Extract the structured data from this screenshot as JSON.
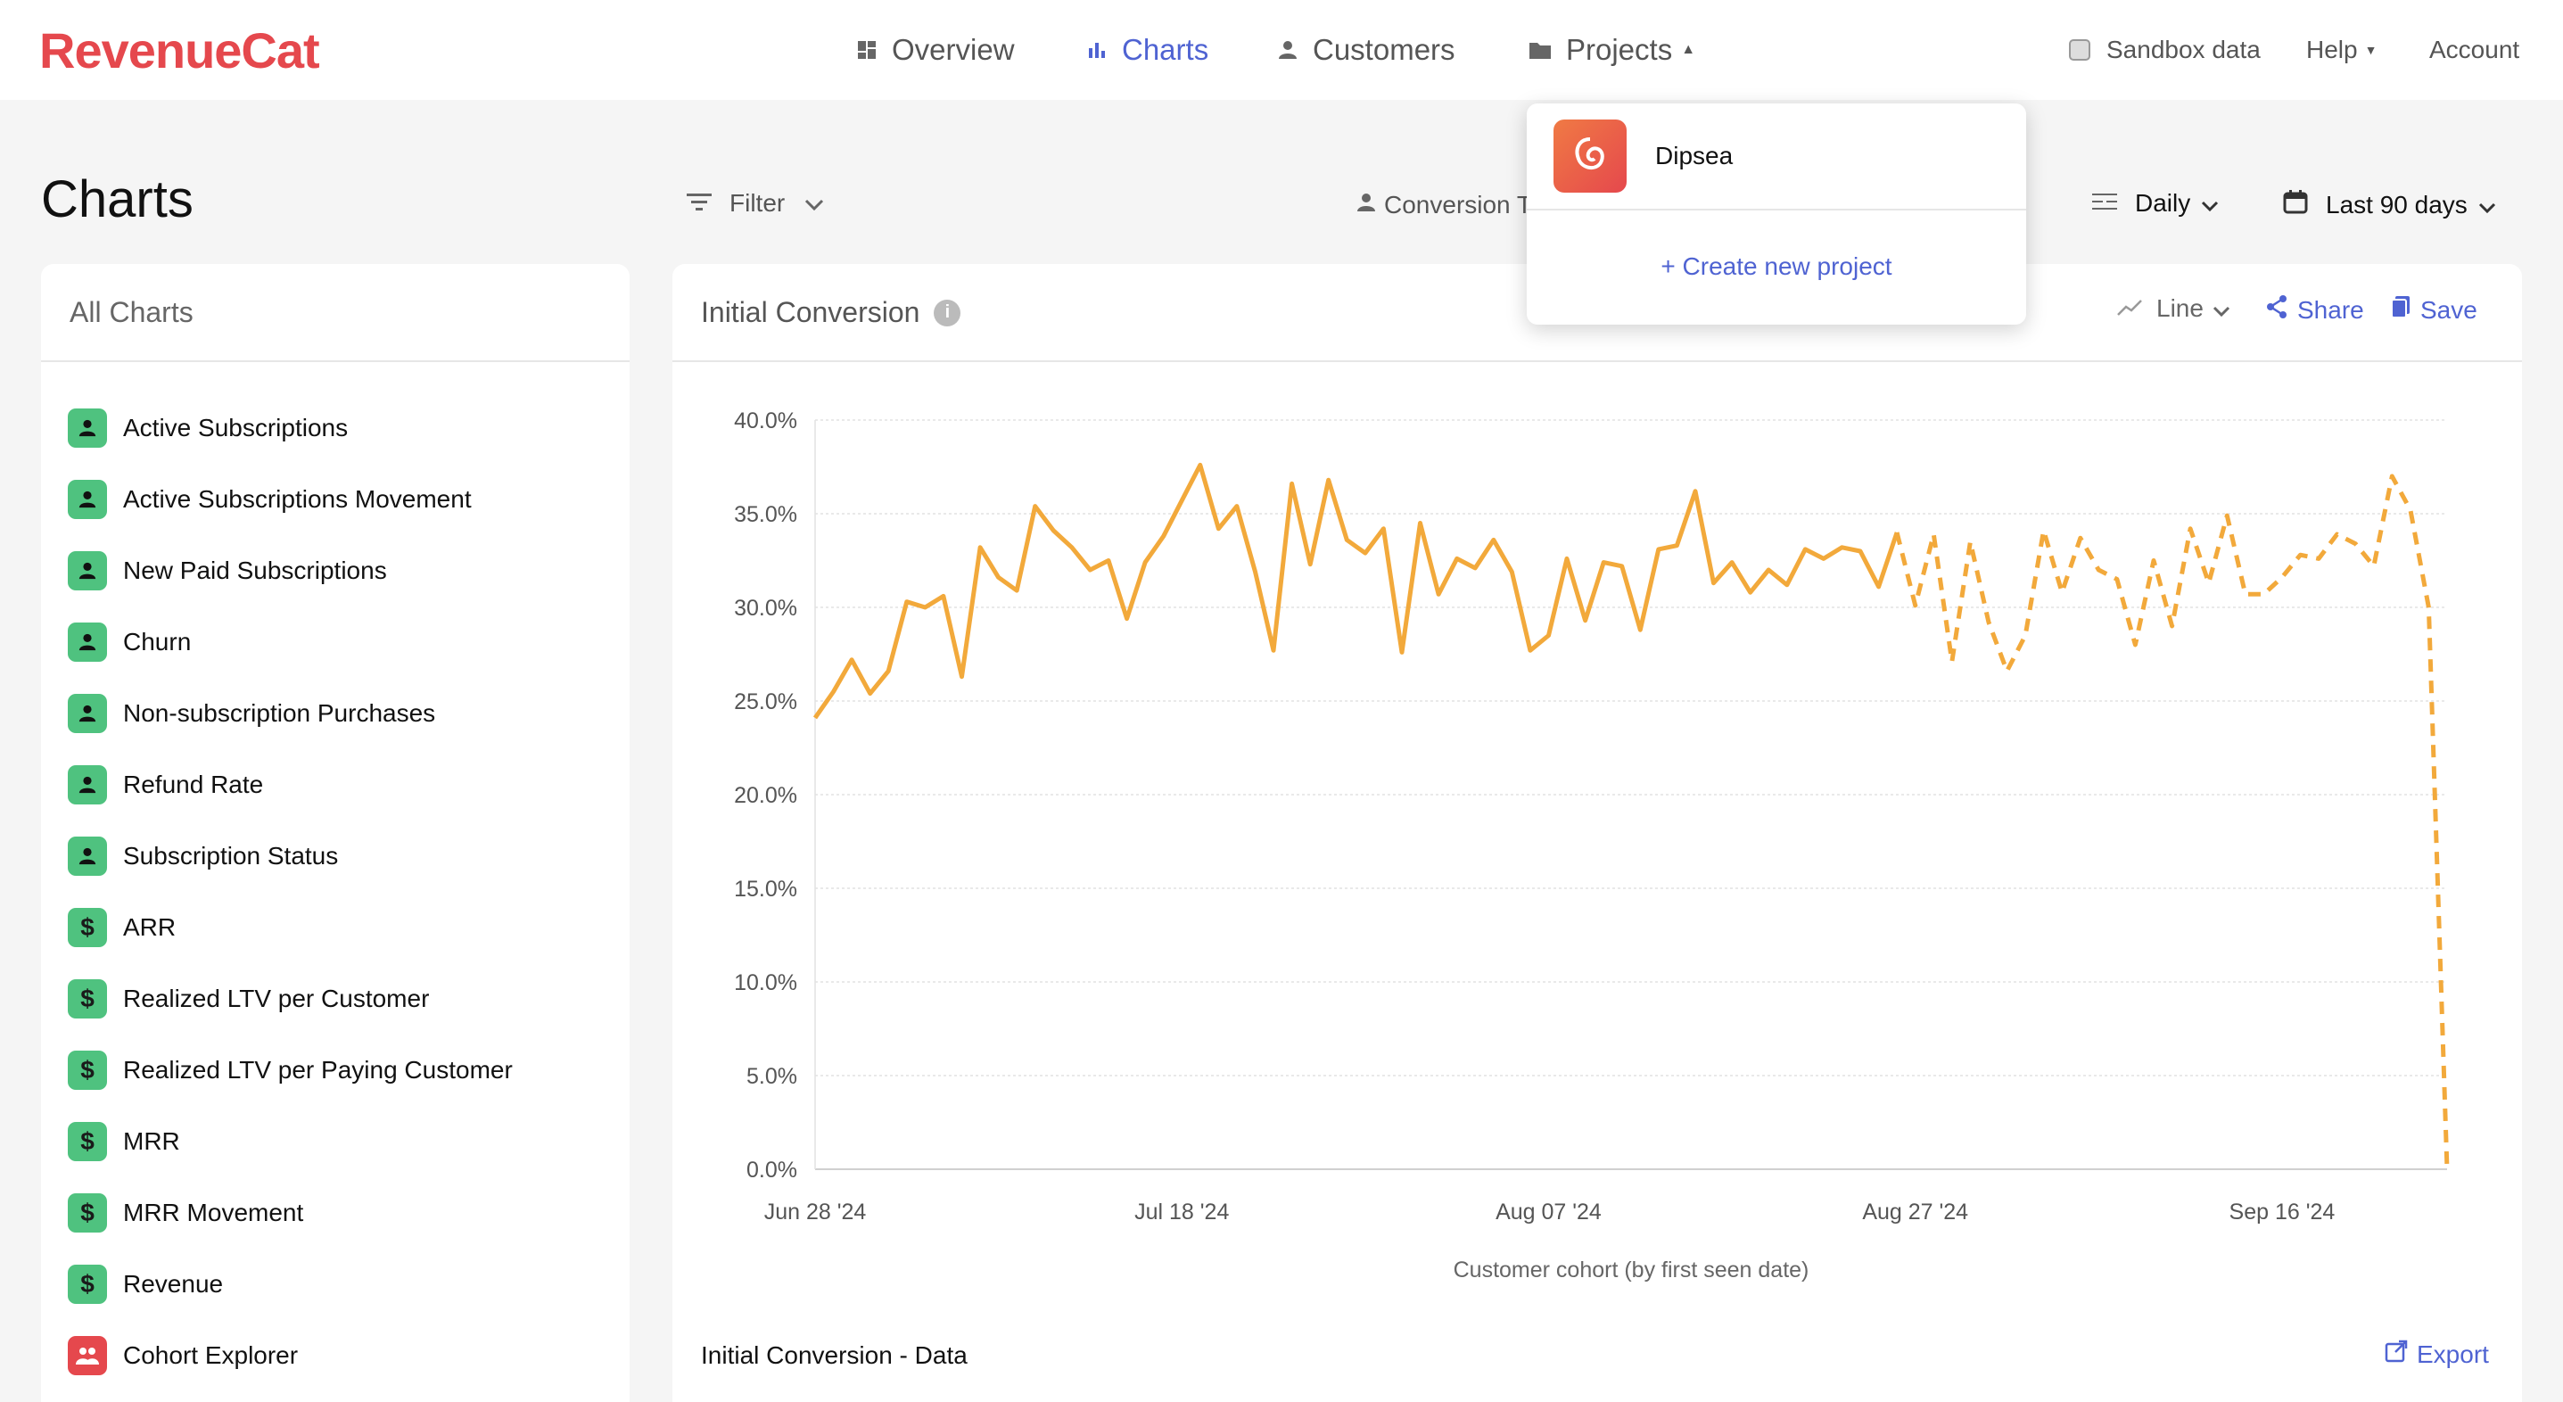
{
  "app": {
    "logo": "RevenueCat"
  },
  "nav": {
    "overview": "Overview",
    "charts": "Charts",
    "customers": "Customers",
    "projects": "Projects",
    "sandbox": "Sandbox data",
    "help": "Help",
    "account": "Account"
  },
  "page": {
    "title": "Charts",
    "filter": "Filter",
    "conversion": "Conversion T",
    "resolution": "Daily",
    "range": "Last 90 days"
  },
  "sidebar": {
    "title": "All Charts",
    "items": [
      {
        "label": "Active Subscriptions",
        "icon": "person-icon"
      },
      {
        "label": "Active Subscriptions Movement",
        "icon": "person-icon"
      },
      {
        "label": "New Paid Subscriptions",
        "icon": "person-icon"
      },
      {
        "label": "Churn",
        "icon": "person-icon"
      },
      {
        "label": "Non-subscription Purchases",
        "icon": "person-icon"
      },
      {
        "label": "Refund Rate",
        "icon": "person-icon"
      },
      {
        "label": "Subscription Status",
        "icon": "person-icon"
      },
      {
        "label": "ARR",
        "icon": "dollar-icon"
      },
      {
        "label": "Realized LTV per Customer",
        "icon": "dollar-icon"
      },
      {
        "label": "Realized LTV per Paying Customer",
        "icon": "dollar-icon"
      },
      {
        "label": "MRR",
        "icon": "dollar-icon"
      },
      {
        "label": "MRR Movement",
        "icon": "dollar-icon"
      },
      {
        "label": "Revenue",
        "icon": "dollar-icon"
      },
      {
        "label": "Cohort Explorer",
        "icon": "group-icon"
      }
    ]
  },
  "main": {
    "title": "Initial Conversion",
    "chart_type": "Line",
    "share": "Share",
    "save": "Save",
    "data_title": "Initial Conversion - Data",
    "export": "Export"
  },
  "dropdown": {
    "project": "Dipsea",
    "create": "+ Create new project"
  },
  "colors": {
    "accent": "#4f63d2",
    "line": "#f2a93b",
    "brand": "#e5484d",
    "badge": "#4fc27f"
  },
  "chart_data": {
    "type": "line",
    "x_start": "2024-06-28",
    "x_ticks": [
      "Jun 28 '24",
      "Jul 18 '24",
      "Aug 07 '24",
      "Aug 27 '24",
      "Sep 16 '24"
    ],
    "xlabel": "Customer cohort (by first seen date)",
    "ylabel": "",
    "y_ticks": [
      "0.0%",
      "5.0%",
      "10.0%",
      "15.0%",
      "20.0%",
      "25.0%",
      "30.0%",
      "35.0%",
      "40.0%"
    ],
    "ylim": [
      0,
      40
    ],
    "grid": true,
    "solid_until_index": 59,
    "values": [
      24.1,
      25.5,
      27.2,
      25.4,
      26.6,
      30.3,
      30.0,
      30.6,
      26.3,
      33.2,
      31.6,
      30.9,
      35.4,
      34.1,
      33.2,
      32.0,
      32.5,
      29.4,
      32.4,
      33.8,
      35.7,
      37.6,
      34.2,
      35.4,
      31.9,
      27.7,
      36.6,
      32.3,
      36.8,
      33.6,
      32.9,
      34.2,
      27.6,
      34.5,
      30.7,
      32.6,
      32.1,
      33.6,
      31.9,
      27.7,
      28.5,
      32.6,
      29.3,
      32.4,
      32.2,
      28.8,
      33.1,
      33.3,
      36.2,
      31.3,
      32.4,
      30.8,
      32.0,
      31.2,
      33.1,
      32.6,
      33.2,
      33.0,
      31.1,
      34.0,
      30.1,
      33.9,
      27.1,
      33.5,
      29.2,
      26.6,
      28.5,
      34.1,
      30.8,
      33.7,
      32.0,
      31.5,
      28.0,
      32.5,
      29.0,
      34.2,
      31.3,
      34.9,
      30.7,
      30.7,
      31.6,
      32.8,
      32.6,
      33.9,
      33.4,
      32.2,
      37.0,
      35.2,
      30.0,
      0.0
    ]
  }
}
